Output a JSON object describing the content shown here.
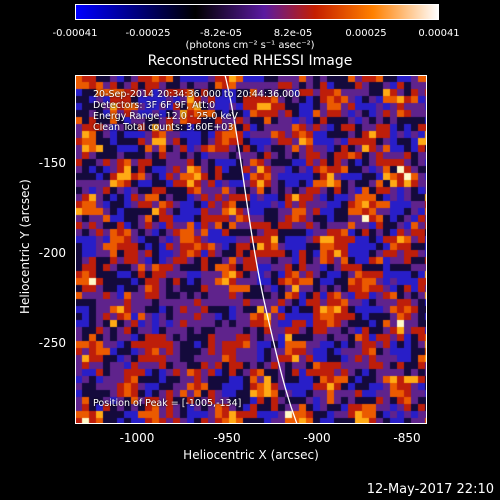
{
  "colorbar": {
    "ticks": [
      "-0.00041",
      "-0.00025",
      "-8.2e-05",
      "8.2e-05",
      "0.00025",
      "0.00041"
    ],
    "units": "(photons cm⁻² s⁻¹ asec⁻²)",
    "colors": [
      "#0000ff",
      "#000000",
      "#5a1aa0",
      "#c41e00",
      "#ff8000",
      "#ffffff"
    ]
  },
  "plot": {
    "title": "Reconstructed RHESSI Image",
    "info_lines": [
      "20-Sep-2014 20:34:36.000 to 20:44:36.000",
      "Detectors: 3F 6F 9F, Att:0",
      "Energy Range: 12.0 - 25.0 keV",
      "Clean    Total counts: 3.60E+03"
    ],
    "peak_text": "Position of Peak = [-1005,-134]",
    "x_ticks": [
      "-1000",
      "-950",
      "-900",
      "-850"
    ],
    "y_ticks": [
      "-150",
      "-200",
      "-250"
    ],
    "xlabel": "Heliocentric X (arcsec)",
    "ylabel": "Heliocentric Y (arcsec)",
    "xlim": [
      -1035,
      -838
    ],
    "ylim": [
      -295,
      -100
    ]
  },
  "footer": "12-May-2017 22:10"
}
